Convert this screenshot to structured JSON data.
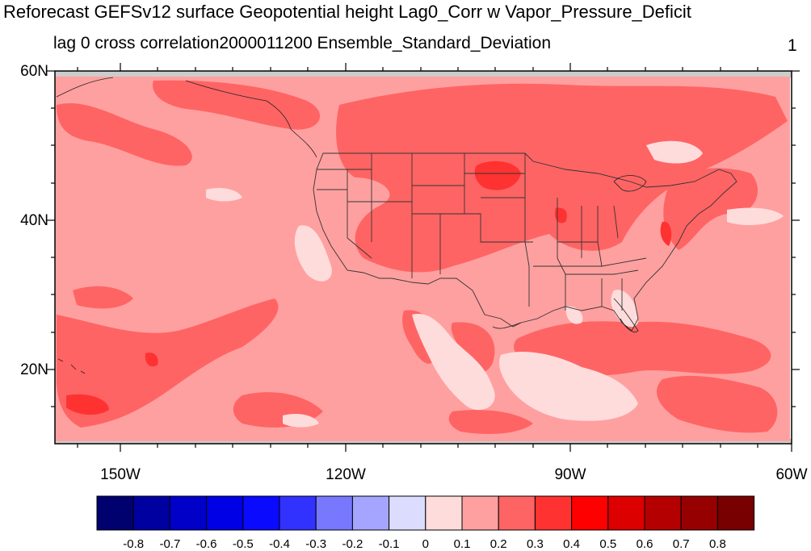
{
  "title": "Reforecast GEFSv12 surface Geopotential height Lag0_Corr w Vapor_Pressure_Deficit",
  "subtitle": "lag 0 cross correlation2000011200 Ensemble_Standard_Deviation",
  "page_number": "1",
  "lat_labels": [
    "60N",
    "40N",
    "20N"
  ],
  "lon_labels": [
    "150W",
    "120W",
    "90W",
    "60W"
  ],
  "colorbar": {
    "labels": [
      "-0.8",
      "-0.7",
      "-0.6",
      "-0.5",
      "-0.4",
      "-0.3",
      "-0.2",
      "-0.1",
      "0",
      "0.1",
      "0.2",
      "0.3",
      "0.4",
      "0.5",
      "0.6",
      "0.7",
      "0.8"
    ],
    "colors": [
      "#00006e",
      "#0000a0",
      "#0000c8",
      "#0000e6",
      "#0a0aff",
      "#3232ff",
      "#7878ff",
      "#a5a5ff",
      "#dcdcff",
      "#ffdcdc",
      "#ffa0a0",
      "#ff6464",
      "#ff3232",
      "#ff0000",
      "#dc0000",
      "#b40000",
      "#960000",
      "#780000"
    ]
  },
  "map_colors": {
    "base": "#ffa0a0",
    "low": "#ffdcdc",
    "mid": "#ff6464",
    "high": "#ff3232",
    "missing": "#cccccc"
  }
}
